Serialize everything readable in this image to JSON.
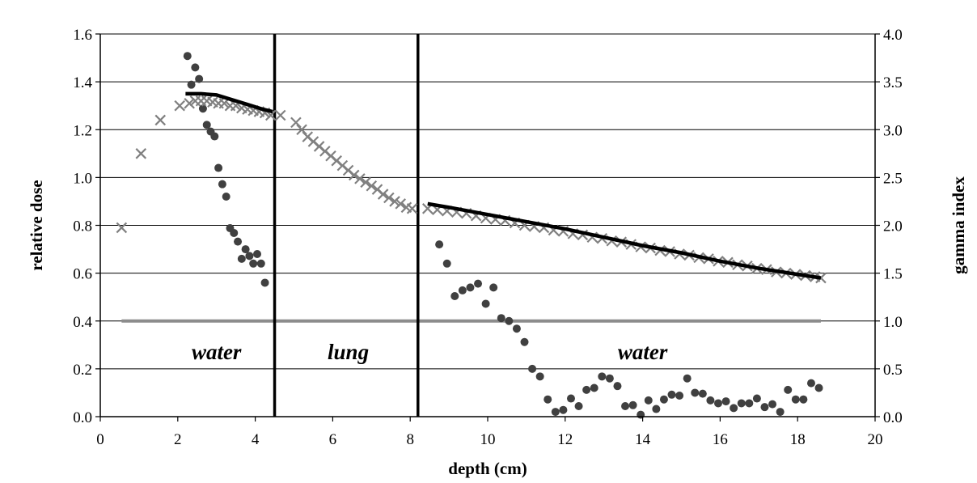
{
  "chart_data": {
    "type": "scatter",
    "xlabel": "depth (cm)",
    "ylabel": "relative dose",
    "y2label": "gamma index",
    "xlim": [
      0,
      20
    ],
    "ylim": [
      0,
      1.6
    ],
    "y2lim": [
      0,
      4.0
    ],
    "x_ticks": [
      "0",
      "2",
      "4",
      "6",
      "8",
      "10",
      "12",
      "14",
      "16",
      "18",
      "20"
    ],
    "y_ticks": [
      "0.0",
      "0.2",
      "0.4",
      "0.6",
      "0.8",
      "1.0",
      "1.2",
      "1.4",
      "1.6"
    ],
    "y2_ticks": [
      "0.0",
      "0.5",
      "1.0",
      "1.5",
      "2.0",
      "2.5",
      "3.0",
      "3.5",
      "4.0"
    ],
    "grid": "horizontal",
    "colors": {
      "dose_line": "#000000",
      "dose_x": "#808080",
      "gamma_dot": "#404040",
      "threshold": "#8c8c8c"
    },
    "regions": [
      {
        "label": "water",
        "x": 3.0,
        "y": 0.27
      },
      {
        "label": "lung",
        "x": 6.4,
        "y": 0.27
      },
      {
        "label": "water",
        "x": 14.0,
        "y": 0.27
      }
    ],
    "boundaries": [
      4.5,
      8.2
    ],
    "threshold": {
      "axis": "y2",
      "value": 1.0,
      "x_range": [
        0.55,
        18.6
      ]
    },
    "series": [
      {
        "style": "line",
        "axis": "y",
        "segments": [
          [
            [
              2.2,
              1.35
            ],
            [
              2.6,
              1.35
            ],
            [
              3.0,
              1.345
            ],
            [
              3.4,
              1.325
            ],
            [
              3.8,
              1.305
            ],
            [
              4.2,
              1.285
            ],
            [
              4.45,
              1.275
            ]
          ],
          [
            [
              8.45,
              0.89
            ],
            [
              9.0,
              0.875
            ],
            [
              10.0,
              0.845
            ],
            [
              11.0,
              0.815
            ],
            [
              12.0,
              0.785
            ],
            [
              13.0,
              0.75
            ],
            [
              14.0,
              0.715
            ],
            [
              15.0,
              0.685
            ],
            [
              16.0,
              0.65
            ],
            [
              17.0,
              0.62
            ],
            [
              18.0,
              0.595
            ],
            [
              18.6,
              0.58
            ]
          ]
        ]
      },
      {
        "style": "x",
        "axis": "y",
        "points": [
          [
            0.55,
            0.79
          ],
          [
            1.05,
            1.1
          ],
          [
            1.55,
            1.24
          ],
          [
            2.05,
            1.3
          ],
          [
            2.3,
            1.31
          ],
          [
            2.45,
            1.32
          ],
          [
            2.6,
            1.32
          ],
          [
            2.75,
            1.32
          ],
          [
            2.9,
            1.315
          ],
          [
            3.05,
            1.31
          ],
          [
            3.2,
            1.31
          ],
          [
            3.35,
            1.3
          ],
          [
            3.5,
            1.3
          ],
          [
            3.65,
            1.29
          ],
          [
            3.8,
            1.285
          ],
          [
            3.95,
            1.28
          ],
          [
            4.1,
            1.275
          ],
          [
            4.25,
            1.27
          ],
          [
            4.4,
            1.26
          ],
          [
            4.65,
            1.26
          ],
          [
            5.05,
            1.23
          ],
          [
            5.2,
            1.2
          ],
          [
            5.35,
            1.17
          ],
          [
            5.5,
            1.15
          ],
          [
            5.65,
            1.13
          ],
          [
            5.8,
            1.11
          ],
          [
            5.95,
            1.09
          ],
          [
            6.1,
            1.07
          ],
          [
            6.25,
            1.05
          ],
          [
            6.4,
            1.03
          ],
          [
            6.55,
            1.01
          ],
          [
            6.7,
            0.995
          ],
          [
            6.85,
            0.98
          ],
          [
            7.0,
            0.965
          ],
          [
            7.15,
            0.95
          ],
          [
            7.3,
            0.93
          ],
          [
            7.45,
            0.915
          ],
          [
            7.6,
            0.9
          ],
          [
            7.75,
            0.89
          ],
          [
            7.9,
            0.875
          ],
          [
            8.05,
            0.87
          ],
          [
            8.45,
            0.87
          ],
          [
            8.7,
            0.865
          ],
          [
            8.95,
            0.86
          ],
          [
            9.2,
            0.855
          ],
          [
            9.45,
            0.85
          ],
          [
            9.7,
            0.84
          ],
          [
            9.95,
            0.83
          ],
          [
            10.2,
            0.825
          ],
          [
            10.45,
            0.82
          ],
          [
            10.7,
            0.81
          ],
          [
            10.95,
            0.8
          ],
          [
            11.2,
            0.795
          ],
          [
            11.45,
            0.79
          ],
          [
            11.7,
            0.78
          ],
          [
            11.95,
            0.775
          ],
          [
            12.2,
            0.765
          ],
          [
            12.45,
            0.76
          ],
          [
            12.7,
            0.75
          ],
          [
            12.95,
            0.745
          ],
          [
            13.2,
            0.735
          ],
          [
            13.45,
            0.73
          ],
          [
            13.7,
            0.72
          ],
          [
            13.95,
            0.71
          ],
          [
            14.2,
            0.705
          ],
          [
            14.45,
            0.695
          ],
          [
            14.7,
            0.69
          ],
          [
            14.95,
            0.68
          ],
          [
            15.2,
            0.675
          ],
          [
            15.45,
            0.665
          ],
          [
            15.7,
            0.66
          ],
          [
            15.95,
            0.65
          ],
          [
            16.2,
            0.645
          ],
          [
            16.45,
            0.635
          ],
          [
            16.7,
            0.63
          ],
          [
            16.95,
            0.62
          ],
          [
            17.2,
            0.615
          ],
          [
            17.45,
            0.605
          ],
          [
            17.7,
            0.6
          ],
          [
            17.95,
            0.595
          ],
          [
            18.2,
            0.59
          ],
          [
            18.45,
            0.585
          ],
          [
            18.6,
            0.58
          ]
        ]
      },
      {
        "style": "dot",
        "axis": "y2",
        "points": [
          [
            2.25,
            3.77
          ],
          [
            2.35,
            3.47
          ],
          [
            2.45,
            3.65
          ],
          [
            2.55,
            3.53
          ],
          [
            2.65,
            3.22
          ],
          [
            2.75,
            3.05
          ],
          [
            2.85,
            2.98
          ],
          [
            2.95,
            2.93
          ],
          [
            3.05,
            2.6
          ],
          [
            3.15,
            2.43
          ],
          [
            3.25,
            2.3
          ],
          [
            3.35,
            1.97
          ],
          [
            3.45,
            1.92
          ],
          [
            3.55,
            1.83
          ],
          [
            3.65,
            1.65
          ],
          [
            3.75,
            1.75
          ],
          [
            3.85,
            1.68
          ],
          [
            3.95,
            1.6
          ],
          [
            4.05,
            1.7
          ],
          [
            4.15,
            1.6
          ],
          [
            4.25,
            1.4
          ],
          [
            8.75,
            1.8
          ],
          [
            8.95,
            1.6
          ],
          [
            9.15,
            1.26
          ],
          [
            9.35,
            1.32
          ],
          [
            9.55,
            1.35
          ],
          [
            9.75,
            1.39
          ],
          [
            9.95,
            1.18
          ],
          [
            10.15,
            1.35
          ],
          [
            10.35,
            1.03
          ],
          [
            10.55,
            1.0
          ],
          [
            10.75,
            0.92
          ],
          [
            10.95,
            0.78
          ],
          [
            11.15,
            0.5
          ],
          [
            11.35,
            0.42
          ],
          [
            11.55,
            0.18
          ],
          [
            11.75,
            0.05
          ],
          [
            11.95,
            0.07
          ],
          [
            12.15,
            0.19
          ],
          [
            12.35,
            0.11
          ],
          [
            12.55,
            0.28
          ],
          [
            12.75,
            0.3
          ],
          [
            12.95,
            0.42
          ],
          [
            13.15,
            0.4
          ],
          [
            13.35,
            0.32
          ],
          [
            13.55,
            0.11
          ],
          [
            13.75,
            0.12
          ],
          [
            13.95,
            0.02
          ],
          [
            14.15,
            0.17
          ],
          [
            14.35,
            0.08
          ],
          [
            14.55,
            0.18
          ],
          [
            14.75,
            0.23
          ],
          [
            14.95,
            0.22
          ],
          [
            15.15,
            0.4
          ],
          [
            15.35,
            0.25
          ],
          [
            15.55,
            0.24
          ],
          [
            15.75,
            0.17
          ],
          [
            15.95,
            0.14
          ],
          [
            16.15,
            0.16
          ],
          [
            16.35,
            0.09
          ],
          [
            16.55,
            0.14
          ],
          [
            16.75,
            0.14
          ],
          [
            16.95,
            0.19
          ],
          [
            17.15,
            0.1
          ],
          [
            17.35,
            0.13
          ],
          [
            17.55,
            0.05
          ],
          [
            17.75,
            0.28
          ],
          [
            17.95,
            0.18
          ],
          [
            18.15,
            0.18
          ],
          [
            18.35,
            0.35
          ],
          [
            18.55,
            0.3
          ]
        ]
      }
    ]
  }
}
